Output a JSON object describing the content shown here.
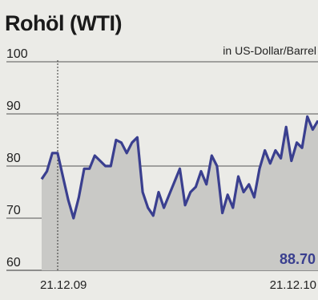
{
  "chart_data": {
    "type": "area",
    "title": "Rohöl (WTI)",
    "unit": "in US-Dollar/Barrel",
    "ylim": [
      60,
      100
    ],
    "yticks": [
      "100",
      "90",
      "80",
      "70",
      "60"
    ],
    "ytick_values": [
      100,
      90,
      80,
      70,
      60
    ],
    "x_start_label": "21.12.09",
    "x_end_label": "21.12.10",
    "end_value_label": "88.70",
    "grid": true,
    "colors": {
      "line": "#3a3f8f",
      "fill": "#c9c9c6",
      "end_label": "#3a3f8f",
      "grid": "#555555"
    },
    "values": [
      77.5,
      79,
      82.5,
      82.5,
      78,
      73.5,
      70,
      74,
      79.5,
      79.5,
      82,
      81,
      80,
      80,
      85,
      84.5,
      82.5,
      84.5,
      85.5,
      75,
      72,
      70.5,
      75,
      72,
      74.5,
      77,
      79.5,
      72.5,
      75,
      76,
      79,
      76.5,
      82,
      80,
      71,
      74.5,
      72,
      78,
      75,
      76.5,
      74,
      79.5,
      83,
      80.5,
      83,
      81.5,
      87.5,
      81,
      84.5,
      83.5,
      89.5,
      87,
      88.7
    ]
  }
}
